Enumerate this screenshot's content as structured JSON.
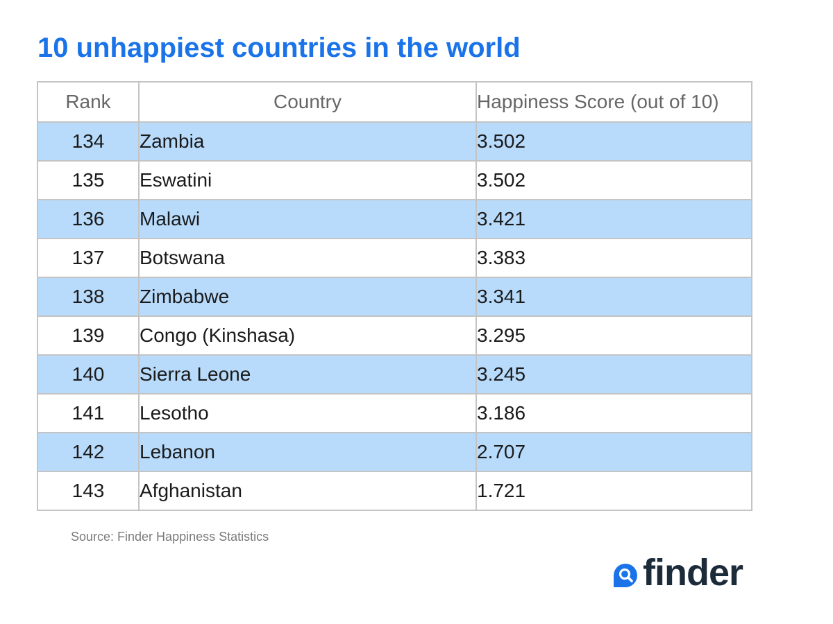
{
  "title": "10 unhappiest countries in the world",
  "chart_data": {
    "type": "table",
    "columns": [
      "Rank",
      "Country",
      "Happiness Score (out of 10)"
    ],
    "rows": [
      {
        "rank": "134",
        "country": "Zambia",
        "score": "3.502"
      },
      {
        "rank": "135",
        "country": "Eswatini",
        "score": "3.502"
      },
      {
        "rank": "136",
        "country": "Malawi",
        "score": "3.421"
      },
      {
        "rank": "137",
        "country": "Botswana",
        "score": "3.383"
      },
      {
        "rank": "138",
        "country": "Zimbabwe",
        "score": "3.341"
      },
      {
        "rank": "139",
        "country": "Congo (Kinshasa)",
        "score": "3.295"
      },
      {
        "rank": "140",
        "country": "Sierra Leone",
        "score": "3.245"
      },
      {
        "rank": "141",
        "country": "Lesotho",
        "score": "3.186"
      },
      {
        "rank": "142",
        "country": "Lebanon",
        "score": "2.707"
      },
      {
        "rank": "143",
        "country": "Afghanistan",
        "score": "1.721"
      }
    ],
    "row_colors": {
      "odd": "#b8dbfc",
      "even": "#ffffff"
    }
  },
  "source": "Source: Finder Happiness Statistics",
  "logo": {
    "text": "finder",
    "icon": "search-icon",
    "color": "#1c2b3a",
    "icon_color": "#1a73e8"
  },
  "colors": {
    "title": "#1a73e8",
    "header_text": "#666666",
    "grid": "#c4c4c4"
  }
}
